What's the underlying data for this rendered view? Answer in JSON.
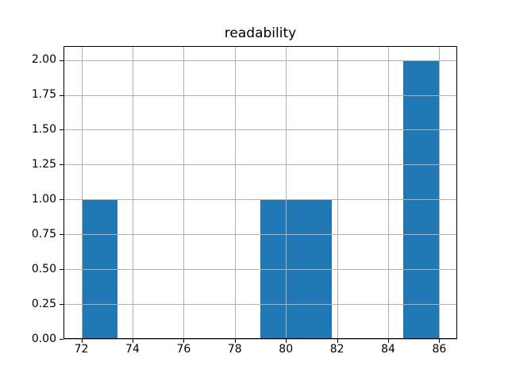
{
  "title": "readability",
  "chart_data": {
    "type": "bar",
    "subtype": "histogram",
    "title": "readability",
    "xlabel": "",
    "ylabel": "",
    "bin_edges": [
      72.0,
      73.4,
      74.8,
      76.2,
      77.6,
      79.0,
      80.4,
      81.8,
      83.2,
      84.6,
      86.0
    ],
    "counts": [
      1,
      0,
      0,
      0,
      0,
      1,
      1,
      0,
      0,
      2
    ],
    "xlim": [
      71.3,
      86.7
    ],
    "ylim": [
      0,
      2.1
    ],
    "xticks": [
      72,
      74,
      76,
      78,
      80,
      82,
      84,
      86
    ],
    "xtick_labels": [
      "72",
      "74",
      "76",
      "78",
      "80",
      "82",
      "84",
      "86"
    ],
    "yticks": [
      0.0,
      0.25,
      0.5,
      0.75,
      1.0,
      1.25,
      1.5,
      1.75,
      2.0
    ],
    "ytick_labels": [
      "0.00",
      "0.25",
      "0.50",
      "0.75",
      "1.00",
      "1.25",
      "1.50",
      "1.75",
      "2.00"
    ],
    "grid": true,
    "grid_above_bars": true,
    "legend": null,
    "bar_color": "#1f77b4",
    "grid_color": "#b0b0b0",
    "axis_color": "#000000",
    "background_color": "#ffffff"
  }
}
